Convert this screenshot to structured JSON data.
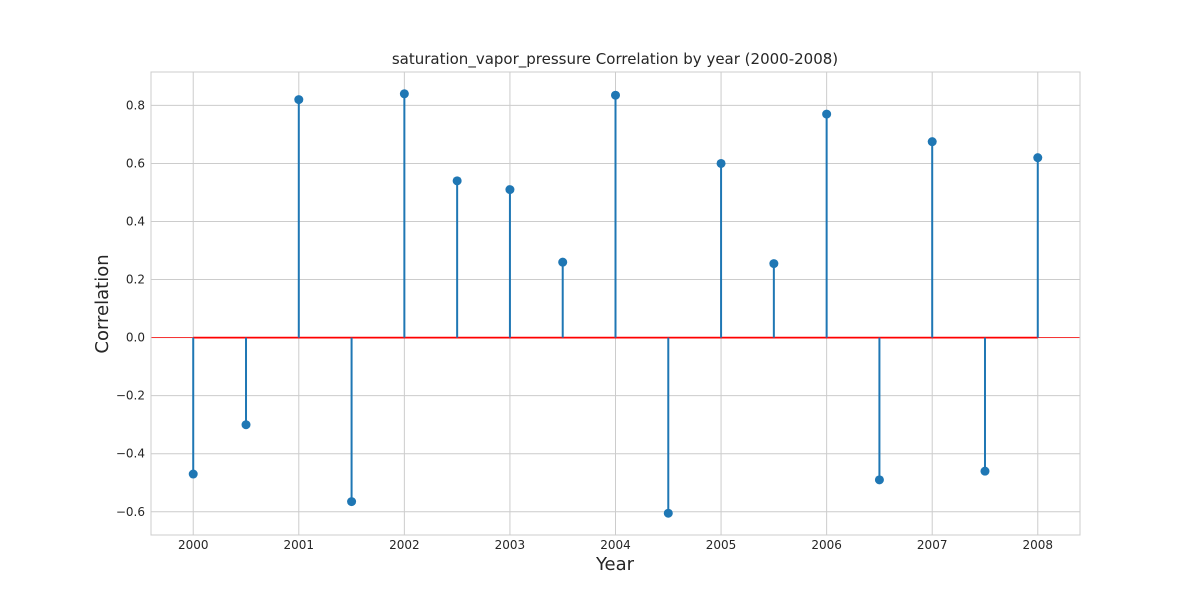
{
  "chart_data": {
    "type": "stem",
    "title": "saturation_vapor_pressure Correlation by year (2000-2008)",
    "xlabel": "Year",
    "ylabel": "Correlation",
    "x": [
      2000,
      2000.5,
      2001,
      2001.5,
      2002,
      2002.5,
      2003,
      2003.5,
      2004,
      2004.5,
      2005,
      2005.5,
      2006,
      2006.5,
      2007,
      2007.5,
      2008
    ],
    "values": [
      -0.47,
      -0.3,
      0.82,
      -0.565,
      0.84,
      0.54,
      0.51,
      0.26,
      0.835,
      -0.605,
      0.6,
      0.255,
      0.77,
      -0.49,
      0.675,
      -0.46,
      0.62
    ],
    "xticks": [
      2000,
      2001,
      2002,
      2003,
      2004,
      2005,
      2006,
      2007,
      2008
    ],
    "xtick_labels": [
      "2000",
      "2001",
      "2002",
      "2003",
      "2004",
      "2005",
      "2006",
      "2007",
      "2008"
    ],
    "yticks": [
      -0.6,
      -0.4,
      -0.2,
      0.0,
      0.2,
      0.4,
      0.6,
      0.8
    ],
    "ytick_labels": [
      "−0.6",
      "−0.4",
      "−0.2",
      "0.0",
      "0.2",
      "0.4",
      "0.6",
      "0.8"
    ],
    "xlim": [
      1999.6,
      2008.4
    ],
    "ylim": [
      -0.68,
      0.915
    ],
    "baseline": 0,
    "grid": true,
    "colors": {
      "stem": "#1f77b4",
      "marker": "#1f77b4",
      "baseline": "#ff0000",
      "grid": "#cccccc",
      "axes_border": "#cccccc",
      "text": "#262626"
    }
  }
}
